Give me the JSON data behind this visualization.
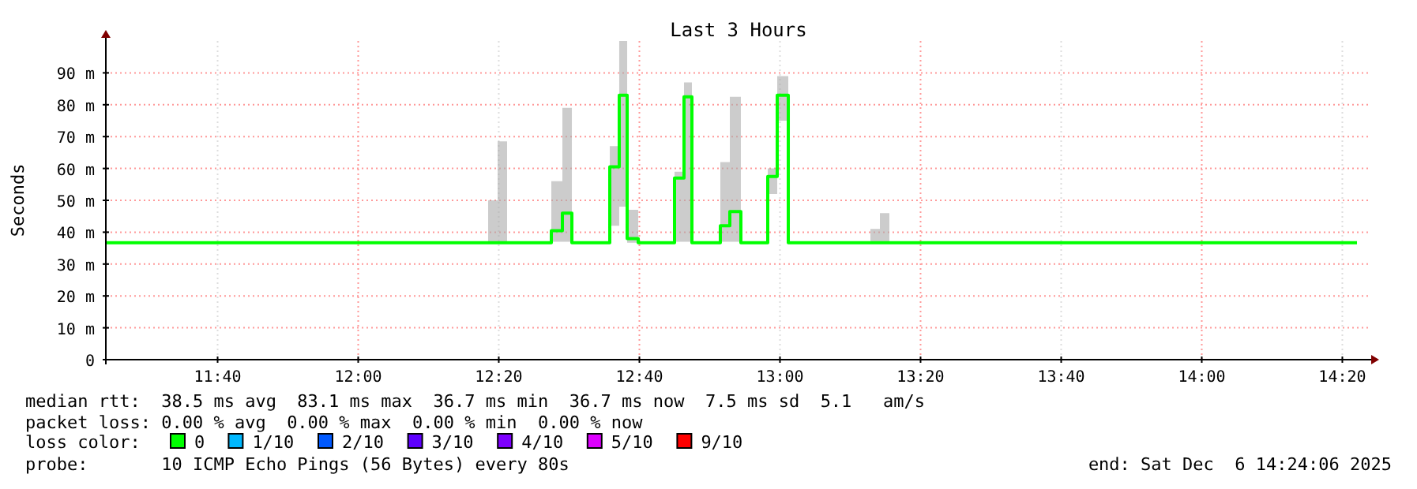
{
  "chart_data": {
    "type": "step",
    "title": "Last 3 Hours",
    "ylabel": "Seconds",
    "legend_title": "loss color:",
    "legend": "bottom",
    "grid": true,
    "xlim": [
      11.4017,
      14.4017
    ],
    "xticks": [
      {
        "value": 11.6667,
        "label": "11:40"
      },
      {
        "value": 12,
        "label": "12:00"
      },
      {
        "value": 12.3333,
        "label": "12:20"
      },
      {
        "value": 12.6667,
        "label": "12:40"
      },
      {
        "value": 13,
        "label": "13:00"
      },
      {
        "value": 13.3333,
        "label": "13:20"
      },
      {
        "value": 13.6667,
        "label": "13:40"
      },
      {
        "value": 14,
        "label": "14:00"
      },
      {
        "value": 14.3333,
        "label": "14:20"
      }
    ],
    "ylim": [
      0,
      100
    ],
    "yticks": [
      0,
      {
        "value": 10,
        "label": "10 m"
      },
      {
        "value": 20,
        "label": "20 m"
      },
      {
        "value": 30,
        "label": "30 m"
      },
      {
        "value": 40,
        "label": "40 m"
      },
      {
        "value": 50,
        "label": "50 m"
      },
      {
        "value": 60,
        "label": "60 m"
      },
      {
        "value": 70,
        "label": "70 m"
      },
      {
        "value": 80,
        "label": "80 m"
      },
      {
        "value": 90,
        "label": "90 m"
      }
    ],
    "series": [
      {
        "name": "0",
        "color": "#00ff00",
        "x": [
          11.4017,
          12.3081,
          12.3306,
          12.353,
          12.4579,
          12.4841,
          12.5066,
          12.5965,
          12.6189,
          12.6377,
          12.6639,
          12.75,
          12.7725,
          12.7912,
          12.8586,
          12.8811,
          12.9073,
          12.971,
          12.9935,
          13.0197,
          13.2144,
          13.2369,
          13.2594,
          14.368
        ],
        "values": [
          36.7,
          36.7,
          36.7,
          36.7,
          40.5,
          46,
          36.7,
          60.5,
          83,
          38,
          36.7,
          57,
          82.5,
          36.7,
          42,
          46.5,
          36.7,
          57.5,
          83,
          36.7,
          36.7,
          36.7,
          36.7,
          36.7
        ],
        "lower": [
          36.7,
          36.7,
          36.7,
          36.7,
          37,
          37,
          36.7,
          42,
          48,
          36.7,
          36.7,
          37,
          37,
          36.7,
          37,
          37,
          36.7,
          52,
          75,
          36.7,
          36.7,
          36.7,
          36.7,
          36.7
        ],
        "upper": [
          36.7,
          50,
          68.5,
          36.7,
          56,
          79,
          36.7,
          67,
          100,
          47,
          36.7,
          59,
          87,
          36.7,
          62,
          82.5,
          36.7,
          60,
          89,
          36.7,
          41,
          46,
          36.7,
          36.7
        ]
      },
      {
        "name": "1/10",
        "color": "#00b8ff"
      },
      {
        "name": "2/10",
        "color": "#0059ff"
      },
      {
        "name": "3/10",
        "color": "#5e00ff"
      },
      {
        "name": "4/10",
        "color": "#7e00ff"
      },
      {
        "name": "5/10",
        "color": "#dd00ff"
      },
      {
        "name": "9/10",
        "color": "#ff0000"
      }
    ],
    "annotations": [
      "median rtt:  38.5 ms avg  83.1 ms max  36.7 ms min  36.7 ms now  7.5 ms sd  5.1   am/s",
      "packet loss: 0.00 % avg  0.00 % max  0.00 % min  0.00 % now",
      "probe:       10 ICMP Echo Pings (56 Bytes) every 80s",
      "end: Sat Dec  6 14:24:06 2025"
    ]
  }
}
